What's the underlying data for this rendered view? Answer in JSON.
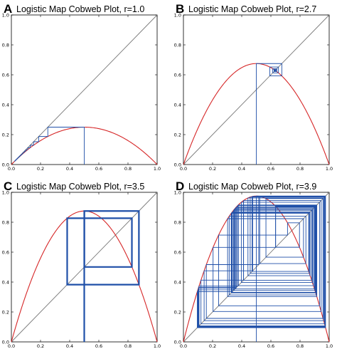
{
  "chart_data": [
    {
      "type": "line",
      "panel_label": "A",
      "title": "Logistic Map Cobweb Plot, r=1.0",
      "r": 1.0,
      "x0": 0.5,
      "iterations": 40,
      "xlim": [
        0.0,
        1.0
      ],
      "ylim": [
        0.0,
        1.0
      ],
      "x_ticks": [
        "0.0",
        "0.2",
        "0.4",
        "0.6",
        "0.8",
        "1.0"
      ],
      "y_ticks": [
        "0.0",
        "0.2",
        "0.4",
        "0.6",
        "0.8",
        "1.0"
      ],
      "series": [
        {
          "role": "logistic-curve",
          "formula": "r*x*(1-x)",
          "color": "#d62728"
        },
        {
          "role": "identity-line",
          "formula": "y=x",
          "color": "#7a7a7a"
        },
        {
          "role": "cobweb",
          "color": "#1f4fa8"
        }
      ],
      "grid": false
    },
    {
      "type": "line",
      "panel_label": "B",
      "title": "Logistic Map Cobweb Plot, r=2.7",
      "r": 2.7,
      "x0": 0.5,
      "iterations": 40,
      "xlim": [
        0.0,
        1.0
      ],
      "ylim": [
        0.0,
        1.0
      ],
      "x_ticks": [
        "0.0",
        "0.2",
        "0.4",
        "0.6",
        "0.8",
        "1.0"
      ],
      "y_ticks": [
        "0.0",
        "0.2",
        "0.4",
        "0.6",
        "0.8",
        "1.0"
      ],
      "series": [
        {
          "role": "logistic-curve",
          "formula": "r*x*(1-x)",
          "color": "#d62728"
        },
        {
          "role": "identity-line",
          "formula": "y=x",
          "color": "#7a7a7a"
        },
        {
          "role": "cobweb",
          "color": "#1f4fa8"
        }
      ],
      "grid": false
    },
    {
      "type": "line",
      "panel_label": "C",
      "title": "Logistic Map Cobweb Plot, r=3.5",
      "r": 3.5,
      "x0": 0.5,
      "iterations": 40,
      "xlim": [
        0.0,
        1.0
      ],
      "ylim": [
        0.0,
        1.0
      ],
      "x_ticks": [
        "0.0",
        "0.2",
        "0.4",
        "0.6",
        "0.8",
        "1.0"
      ],
      "y_ticks": [
        "0.0",
        "0.2",
        "0.4",
        "0.6",
        "0.8",
        "1.0"
      ],
      "series": [
        {
          "role": "logistic-curve",
          "formula": "r*x*(1-x)",
          "color": "#d62728"
        },
        {
          "role": "identity-line",
          "formula": "y=x",
          "color": "#7a7a7a"
        },
        {
          "role": "cobweb",
          "color": "#1f4fa8"
        }
      ],
      "grid": false
    },
    {
      "type": "line",
      "panel_label": "D",
      "title": "Logistic Map Cobweb Plot, r=3.9",
      "r": 3.9,
      "x0": 0.5,
      "iterations": 60,
      "xlim": [
        0.0,
        1.0
      ],
      "ylim": [
        0.0,
        1.0
      ],
      "x_ticks": [
        "0.0",
        "0.2",
        "0.4",
        "0.6",
        "0.8",
        "1.0"
      ],
      "y_ticks": [
        "0.0",
        "0.2",
        "0.4",
        "0.6",
        "0.8",
        "1.0"
      ],
      "series": [
        {
          "role": "logistic-curve",
          "formula": "r*x*(1-x)",
          "color": "#d62728"
        },
        {
          "role": "identity-line",
          "formula": "y=x",
          "color": "#7a7a7a"
        },
        {
          "role": "cobweb",
          "color": "#1f4fa8"
        }
      ],
      "grid": false
    }
  ]
}
